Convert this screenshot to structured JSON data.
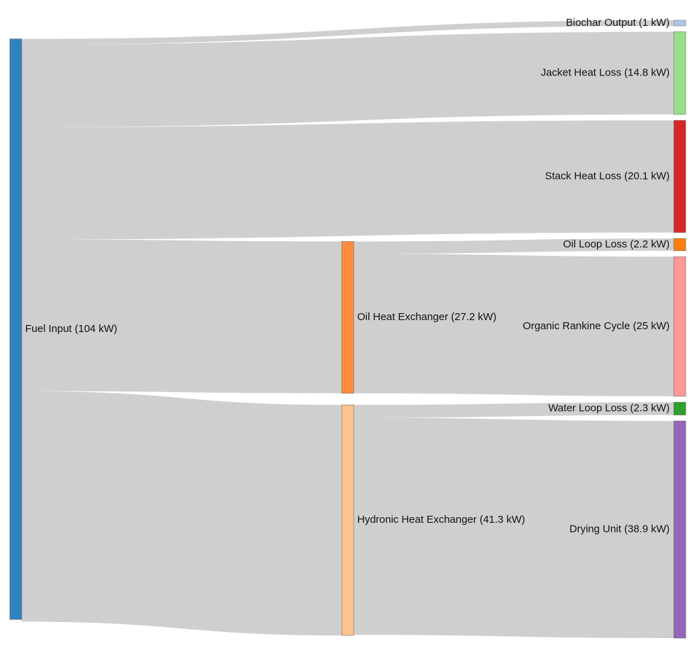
{
  "chart_data": {
    "type": "sankey",
    "nodes": [
      {
        "label": "Fuel Input (104 kW)",
        "value": 104,
        "color": "#3182bd"
      },
      {
        "label": "Oil Heat Exchanger (27.2 kW)",
        "value": 27.2,
        "color": "#fd8d3c"
      },
      {
        "label": "Hydronic Heat Exchanger (41.3 kW)",
        "value": 41.3,
        "color": "#fdc28f"
      },
      {
        "label": "Biochar Output (1 kW)",
        "value": 1,
        "color": "#aec7e8"
      },
      {
        "label": "Jacket Heat Loss (14.8 kW)",
        "value": 14.8,
        "color": "#98df8a"
      },
      {
        "label": "Stack Heat Loss (20.1 kW)",
        "value": 20.1,
        "color": "#d62728"
      },
      {
        "label": "Oil Loop Loss (2.2 kW)",
        "value": 2.2,
        "color": "#ff7f0e"
      },
      {
        "label": "Organic Rankine Cycle (25 kW)",
        "value": 25,
        "color": "#ff9896"
      },
      {
        "label": "Water Loop Loss (2.3 kW)",
        "value": 2.3,
        "color": "#2ca02c"
      },
      {
        "label": "Drying Unit (38.9 kW)",
        "value": 38.9,
        "color": "#9467bd"
      }
    ],
    "links": [
      {
        "source": 0,
        "target": 3,
        "value": 1
      },
      {
        "source": 0,
        "target": 4,
        "value": 14.8
      },
      {
        "source": 0,
        "target": 5,
        "value": 20.1
      },
      {
        "source": 0,
        "target": 1,
        "value": 27.2
      },
      {
        "source": 0,
        "target": 2,
        "value": 41.3
      },
      {
        "source": 1,
        "target": 6,
        "value": 2.2
      },
      {
        "source": 1,
        "target": 7,
        "value": 25
      },
      {
        "source": 2,
        "target": 8,
        "value": 2.3
      },
      {
        "source": 2,
        "target": 9,
        "value": 38.9
      }
    ]
  }
}
